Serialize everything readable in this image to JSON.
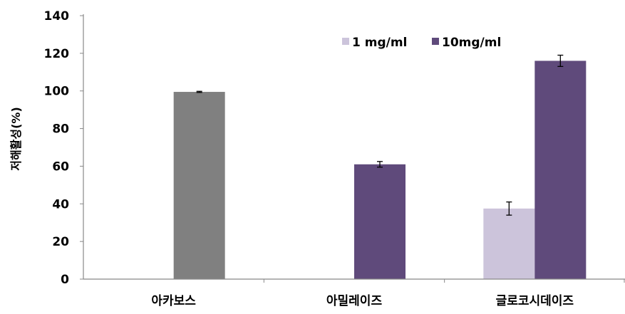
{
  "chart_data": {
    "type": "bar",
    "ylabel": "저해활성(%)",
    "ylim": [
      0,
      140
    ],
    "yticks": [
      0,
      20,
      40,
      60,
      80,
      100,
      120,
      140
    ],
    "grid": false,
    "legend_position": "top-right",
    "categories": [
      "아카보스",
      "아밀레이즈",
      "글로코시데이즈"
    ],
    "series": [
      {
        "name": "1 mg/ml",
        "color": "#ccc4db",
        "values": [
          null,
          null,
          37.5
        ],
        "errors": [
          null,
          null,
          3.5
        ]
      },
      {
        "name": "10mg/ml",
        "color": "#5f4a7b",
        "values": [
          null,
          61,
          116
        ],
        "errors": [
          null,
          1.5,
          3
        ]
      }
    ],
    "extra_bars": [
      {
        "category_index": 0,
        "value": 99.5,
        "error": 0.3,
        "color": "#808080"
      }
    ]
  }
}
